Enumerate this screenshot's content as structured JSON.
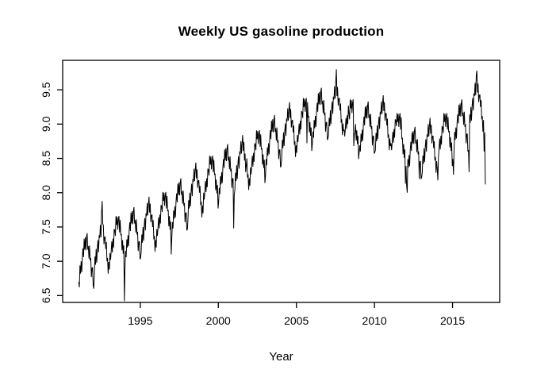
{
  "chart_data": {
    "type": "line",
    "title": "Weekly US gasoline production",
    "xlabel": "Year",
    "ylabel": "",
    "legend": "none",
    "grid": false,
    "background": "#ffffff",
    "fg": "#000000",
    "line_color": "#000000",
    "xlim": [
      1990.03,
      2018.02
    ],
    "ylim": [
      6.4,
      9.93
    ],
    "x_ticks": [
      1995,
      2000,
      2005,
      2010,
      2015
    ],
    "y_ticks": [
      6.5,
      7.0,
      7.5,
      8.0,
      8.5,
      9.0,
      9.5
    ],
    "x_start": 1991.06,
    "x_step": 0.0384615,
    "values": [
      6.7,
      6.62,
      6.94,
      6.82,
      7.0,
      6.84,
      7.07,
      7.19,
      7.06,
      7.33,
      7.17,
      7.35,
      7.16,
      7.35,
      7.41,
      7.17,
      7.22,
      7.04,
      7.23,
      7.01,
      7.05,
      6.77,
      6.9,
      6.91,
      6.65,
      6.6,
      6.82,
      7.07,
      6.95,
      7.18,
      6.98,
      7.19,
      7.31,
      7.13,
      7.38,
      7.34,
      7.53,
      7.35,
      7.71,
      7.88,
      7.55,
      7.52,
      7.25,
      7.35,
      7.36,
      7.18,
      7.28,
      7.0,
      7.05,
      6.82,
      6.99,
      6.88,
      7.12,
      7.02,
      7.14,
      7.29,
      7.13,
      7.33,
      7.2,
      7.47,
      7.45,
      7.37,
      7.66,
      7.53,
      7.65,
      7.46,
      7.61,
      7.66,
      7.42,
      7.6,
      7.38,
      7.4,
      7.16,
      7.31,
      7.11,
      7.23,
      6.42,
      6.9,
      7.15,
      7.06,
      7.32,
      7.2,
      7.38,
      7.22,
      7.45,
      7.57,
      7.44,
      7.71,
      7.55,
      7.73,
      7.54,
      7.73,
      7.79,
      7.55,
      7.6,
      7.42,
      7.61,
      7.39,
      7.43,
      7.15,
      7.28,
      7.29,
      7.03,
      7.05,
      7.14,
      7.39,
      7.27,
      7.5,
      7.3,
      7.51,
      7.63,
      7.45,
      7.7,
      7.66,
      7.85,
      7.67,
      7.83,
      7.94,
      7.71,
      7.84,
      7.57,
      7.67,
      7.68,
      7.5,
      7.6,
      7.32,
      7.37,
      7.14,
      7.31,
      7.2,
      7.47,
      7.37,
      7.49,
      7.64,
      7.48,
      7.68,
      7.55,
      7.82,
      7.8,
      7.72,
      8.01,
      7.88,
      8.0,
      7.81,
      7.96,
      8.01,
      7.77,
      7.95,
      7.73,
      7.75,
      7.51,
      7.66,
      7.46,
      7.58,
      7.1,
      7.34,
      7.57,
      7.48,
      7.74,
      7.62,
      7.8,
      7.64,
      7.87,
      7.99,
      7.86,
      8.13,
      7.97,
      8.15,
      7.96,
      8.15,
      8.21,
      7.97,
      8.02,
      7.84,
      8.03,
      7.81,
      7.85,
      7.57,
      7.7,
      7.71,
      7.45,
      7.47,
      7.64,
      7.89,
      7.77,
      8.0,
      7.8,
      8.01,
      8.13,
      7.95,
      8.2,
      8.16,
      8.35,
      8.17,
      8.33,
      8.44,
      8.21,
      8.34,
      8.07,
      8.17,
      8.18,
      8.0,
      8.1,
      7.82,
      7.87,
      7.64,
      7.81,
      7.7,
      8.0,
      7.9,
      8.02,
      8.17,
      8.01,
      8.21,
      8.08,
      8.35,
      8.33,
      8.25,
      8.54,
      8.41,
      8.53,
      8.34,
      8.49,
      8.54,
      8.3,
      8.48,
      8.26,
      8.28,
      8.04,
      8.19,
      7.99,
      8.11,
      7.77,
      7.87,
      8.07,
      7.98,
      8.24,
      8.12,
      8.3,
      8.14,
      8.37,
      8.49,
      8.36,
      8.63,
      8.47,
      8.65,
      8.46,
      8.65,
      8.71,
      8.47,
      8.52,
      8.34,
      8.53,
      8.31,
      8.35,
      8.07,
      8.2,
      8.21,
      7.48,
      7.97,
      8.04,
      8.29,
      8.17,
      8.4,
      8.2,
      8.41,
      8.53,
      8.35,
      8.6,
      8.56,
      8.75,
      8.57,
      8.73,
      8.84,
      8.61,
      8.74,
      8.47,
      8.57,
      8.3,
      8.4,
      8.5,
      8.22,
      8.27,
      8.04,
      8.21,
      8.1,
      8.37,
      8.27,
      8.39,
      8.54,
      8.38,
      8.58,
      8.45,
      8.72,
      8.7,
      8.62,
      8.91,
      8.78,
      8.9,
      8.71,
      8.86,
      8.91,
      8.67,
      8.85,
      8.63,
      8.65,
      8.41,
      8.56,
      8.36,
      8.48,
      8.14,
      8.24,
      8.49,
      8.4,
      8.66,
      8.54,
      8.72,
      8.56,
      8.79,
      8.91,
      8.78,
      9.05,
      8.89,
      9.07,
      8.88,
      9.07,
      9.13,
      8.89,
      8.94,
      8.76,
      8.95,
      8.73,
      8.77,
      8.49,
      8.62,
      8.63,
      8.37,
      8.39,
      8.52,
      8.77,
      8.65,
      8.88,
      8.68,
      8.89,
      9.01,
      8.83,
      9.08,
      9.04,
      9.23,
      9.05,
      9.21,
      9.32,
      9.09,
      9.22,
      8.95,
      9.05,
      9.06,
      8.88,
      8.98,
      8.7,
      8.75,
      8.52,
      8.69,
      8.58,
      8.84,
      8.74,
      8.86,
      9.01,
      8.85,
      9.05,
      8.92,
      9.19,
      9.17,
      9.09,
      9.38,
      9.25,
      9.37,
      9.18,
      9.33,
      9.38,
      8.72,
      9.32,
      9.1,
      9.12,
      8.88,
      9.03,
      8.83,
      8.95,
      8.61,
      8.71,
      8.89,
      8.8,
      9.06,
      8.94,
      9.12,
      8.96,
      9.19,
      9.31,
      9.18,
      9.45,
      9.29,
      9.47,
      9.28,
      9.47,
      9.53,
      9.29,
      9.34,
      9.16,
      9.35,
      9.13,
      9.17,
      8.89,
      9.02,
      9.03,
      8.77,
      8.79,
      8.84,
      9.09,
      8.97,
      9.2,
      9.0,
      9.21,
      9.33,
      9.15,
      9.4,
      9.36,
      9.55,
      9.37,
      9.62,
      9.8,
      9.41,
      9.54,
      9.27,
      9.37,
      9.38,
      9.2,
      9.3,
      9.02,
      9.07,
      8.84,
      9.01,
      8.9,
      8.92,
      8.82,
      8.94,
      9.09,
      8.93,
      9.13,
      9.0,
      9.27,
      9.15,
      9.07,
      9.36,
      9.23,
      9.35,
      9.16,
      9.31,
      9.36,
      8.68,
      8.85,
      8.88,
      9.0,
      8.76,
      8.91,
      8.71,
      8.83,
      8.49,
      8.59,
      8.69,
      8.6,
      8.86,
      8.74,
      8.92,
      8.76,
      8.99,
      9.11,
      8.98,
      9.25,
      9.09,
      9.27,
      9.08,
      9.27,
      9.33,
      9.09,
      9.14,
      8.96,
      9.15,
      8.93,
      8.97,
      8.69,
      8.82,
      8.83,
      8.57,
      8.59,
      8.62,
      8.87,
      8.75,
      8.98,
      8.78,
      8.99,
      9.11,
      8.93,
      9.18,
      9.14,
      9.33,
      9.15,
      9.31,
      9.42,
      9.19,
      9.32,
      9.05,
      9.15,
      9.16,
      8.98,
      9.08,
      8.8,
      8.85,
      8.62,
      8.79,
      8.68,
      8.72,
      8.62,
      8.74,
      8.89,
      8.73,
      8.93,
      8.8,
      9.07,
      9.05,
      8.97,
      9.16,
      9.03,
      9.15,
      8.96,
      9.11,
      9.16,
      8.92,
      9.1,
      8.78,
      8.8,
      8.56,
      8.71,
      8.51,
      8.63,
      8.13,
      8.39,
      8.1,
      8.0,
      8.49,
      8.37,
      8.55,
      8.39,
      8.62,
      8.74,
      8.61,
      8.88,
      8.72,
      8.9,
      8.71,
      8.9,
      8.96,
      8.72,
      8.77,
      8.59,
      8.78,
      8.56,
      8.6,
      8.2,
      8.45,
      8.46,
      8.2,
      8.22,
      8.29,
      8.54,
      8.42,
      8.65,
      8.45,
      8.66,
      8.78,
      8.6,
      8.85,
      8.81,
      9.0,
      8.82,
      8.98,
      9.09,
      8.86,
      8.99,
      8.72,
      8.82,
      8.83,
      8.65,
      8.75,
      8.47,
      8.52,
      8.29,
      8.46,
      8.35,
      8.18,
      8.52,
      8.64,
      8.79,
      8.63,
      8.83,
      8.7,
      8.97,
      8.95,
      8.87,
      9.16,
      9.03,
      9.15,
      8.96,
      9.11,
      9.16,
      8.92,
      9.1,
      8.88,
      8.9,
      8.66,
      8.81,
      8.61,
      8.73,
      8.39,
      8.49,
      8.26,
      8.63,
      8.89,
      8.77,
      8.95,
      8.79,
      9.02,
      9.14,
      9.01,
      9.28,
      9.12,
      9.3,
      9.11,
      9.3,
      9.36,
      9.12,
      9.17,
      8.99,
      9.18,
      8.96,
      9.0,
      8.72,
      8.85,
      8.86,
      8.6,
      8.62,
      8.3,
      9.14,
      9.02,
      9.25,
      9.05,
      9.26,
      9.38,
      9.2,
      9.45,
      9.41,
      9.6,
      9.42,
      9.72,
      9.78,
      9.46,
      9.59,
      9.32,
      9.42,
      9.43,
      9.25,
      9.35,
      9.07,
      9.12,
      8.89,
      9.06,
      8.6,
      8.88,
      8.12
    ]
  }
}
